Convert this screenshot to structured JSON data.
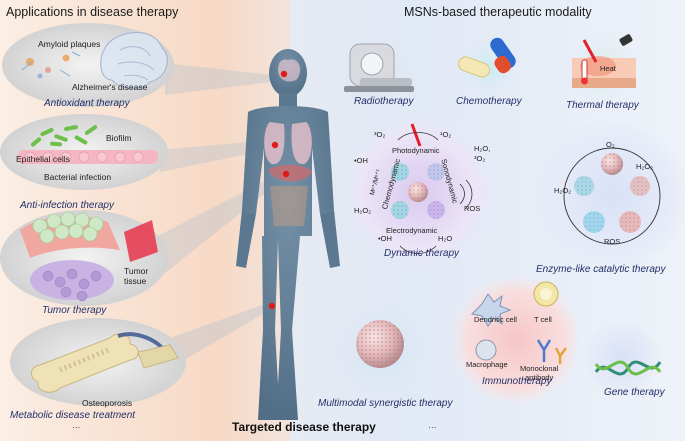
{
  "left_panel": {
    "title": "Applications in disease therapy",
    "alzheimers": {
      "label_plaques": "Amyloid plaques",
      "label_disease": "Alzheimer's disease",
      "caption": "Antioxidant therapy"
    },
    "infection": {
      "label_biofilm": "Biofilm",
      "label_cells": "Epithelial cells",
      "label_infection": "Bacterial infection",
      "caption": "Anti-infection therapy"
    },
    "tumor": {
      "label_tissue": "Tumor\ntissue",
      "caption": "Tumor therapy"
    },
    "metabolic": {
      "label_osteo": "Osteoporosis",
      "caption": "Metabolic disease treatment",
      "ellipsis": "···"
    }
  },
  "right_panel": {
    "title": "MSNs-based therapeutic modality",
    "radiotherapy": "Radiotherapy",
    "chemotherapy": "Chemotherapy",
    "thermal": {
      "caption": "Thermal therapy",
      "label_heat": "Heat"
    },
    "dynamic": {
      "caption": "Dynamic therapy",
      "photodynamic": "Photodynamic",
      "sonodynamic": "Sonodynamic",
      "chemodynamic": "Chemodynamic",
      "electrodynamic": "Electrodynamic",
      "o2_triplet": "³O₂",
      "o2_singlet": "¹O₂",
      "oh": "•OH",
      "h2o2_left": "H₂O₂",
      "h2o_3o2": "H₂O,\n³O₂",
      "ros": "ROS",
      "oh_bottom": "•OH",
      "h2o_bottom": "H₂O",
      "metal_ions": "Mⁿ⁺/Mⁿ⁺¹"
    },
    "enzyme": {
      "caption": "Enzyme-like catalytic therapy",
      "o2": "O₂",
      "h2o2_right": "H₂O₂",
      "h2o2_left": "H₂O₂",
      "ros": "ROS"
    },
    "immuno": {
      "caption": "Immunotherapy",
      "dendritic": "Dendritic cell",
      "tcell": "T cell",
      "macrophage": "Macrophage",
      "antibody": "Monoclonal\nantibody"
    },
    "multimodal": "Multimodal synergistic therapy",
    "gene": "Gene therapy",
    "ellipsis": "···"
  },
  "footer": {
    "title": "Targeted disease therapy"
  },
  "colors": {
    "left_bg": "#f6dccb",
    "right_bg": "#e3ebf6",
    "body": "#5f7c94",
    "marker": "#e01b1b",
    "caption": "#24306a"
  }
}
